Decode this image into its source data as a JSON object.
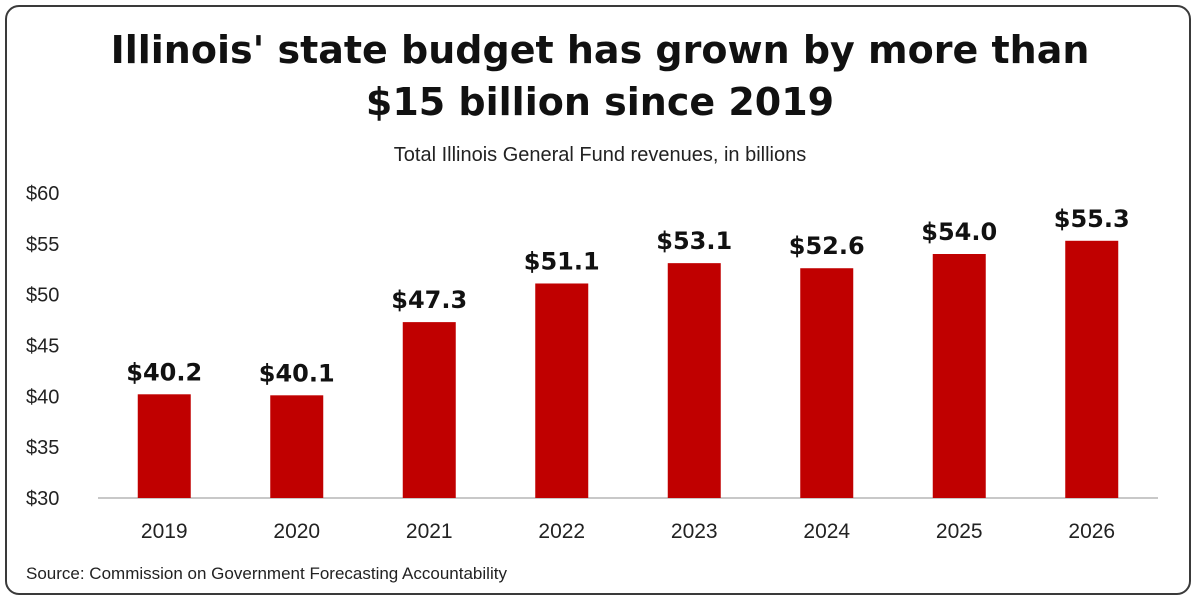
{
  "chart_data": {
    "type": "bar",
    "title": "Illinois' state budget has grown by more than $15 billion since 2019",
    "title_lines": [
      "Illinois' state budget has grown by more than",
      "$15 billion since 2019"
    ],
    "subtitle": "Total Illinois General Fund revenues, in billions",
    "source": "Source: Commission on Government Forecasting Accountability",
    "categories": [
      "2019",
      "2020",
      "2021",
      "2022",
      "2023",
      "2024",
      "2025",
      "2026"
    ],
    "values": [
      40.2,
      40.1,
      47.3,
      51.1,
      53.1,
      52.6,
      54.0,
      55.3
    ],
    "data_labels": [
      "$40.2",
      "$40.1",
      "$47.3",
      "$51.1",
      "$53.1",
      "$52.6",
      "$54.0",
      "$55.3"
    ],
    "y_ticks": [
      "$60",
      "$55",
      "$50",
      "$45",
      "$40",
      "$35",
      "$30"
    ],
    "ylim": [
      30,
      60
    ],
    "xlabel": "",
    "ylabel": "",
    "grid": false,
    "legend": "none",
    "bar_color": "#c00000"
  }
}
